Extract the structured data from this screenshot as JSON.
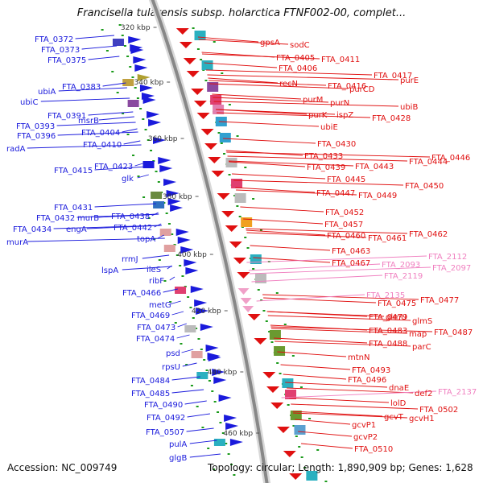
{
  "title": "Francisella tularensis subsp. holarctica FTNF002-00, complet...",
  "footer": {
    "accession": "Accession: NC_009749",
    "summary": "Topology: circular; Length: 1,890,909 bp; Genes: 1,628"
  },
  "colors": {
    "left_labels": "#1a1adc",
    "right_labels": "#e01010",
    "pink_labels": "#f080c0",
    "backbone": "#888888",
    "tick_text": "#333333",
    "dots": "#1a9a1a"
  },
  "ticks": [
    "320 kbp",
    "340 kbp",
    "360 kbp",
    "380 kbp",
    "400 kbp",
    "420 kbp",
    "440 kbp",
    "460 kbp"
  ],
  "left_labels": [
    "FTA_0372",
    "FTA_0373",
    "FTA_0375",
    "ubiA",
    "FTA_0383",
    "ubiC",
    "FTA_0391",
    "msrB",
    "FTA_0393",
    "FTA_0396",
    "radA",
    "FTA_0404",
    "FTA_0410",
    "FTA_0415",
    "FTA_0423",
    "glk",
    "FTA_0431",
    "FTA_0432",
    "murB",
    "FTA_0438",
    "FTA_0434",
    "engA",
    "FTA_0442",
    "murA",
    "topA",
    "rrmJ",
    "lspA",
    "ileS",
    "ribF",
    "FTA_0466",
    "metG",
    "FTA_0469",
    "FTA_0473",
    "FTA_0474",
    "psd",
    "rpsU",
    "FTA_0484",
    "FTA_0485",
    "FTA_0490",
    "FTA_0492",
    "FTA_0507",
    "pulA",
    "glgB"
  ],
  "right_labels": [
    "gpsA",
    "sodC",
    "FTA_0405",
    "FTA_0411",
    "FTA_0406",
    "recN",
    "FTA_0417",
    "purE",
    "FTA_0416",
    "purCD",
    "purM",
    "purN",
    "ubiB",
    "purK",
    "ispZ",
    "FTA_0428",
    "ubiE",
    "FTA_0430",
    "FTA_0433",
    "FTA_0439",
    "FTA_0443",
    "FTA_0444",
    "FTA_0446",
    "FTA_0445",
    "FTA_0450",
    "FTA_0447",
    "FTA_0449",
    "FTA_0452",
    "FTA_0457",
    "FTA_0460",
    "FTA_0461",
    "FTA_0462",
    "FTA_0463",
    "FTA_0467",
    "FTA_0475",
    "FTA_0477",
    "FTA_0479",
    "glmU",
    "glmS",
    "FTA_0483",
    "map",
    "FTA_0487",
    "FTA_0488",
    "parC",
    "mtnN",
    "FTA_0493",
    "FTA_0496",
    "dnaE",
    "def2",
    "FTA_0502",
    "lolD",
    "gcvT",
    "gcvH1",
    "gcvP1",
    "gcvP2",
    "FTA_0510"
  ],
  "pink_labels": [
    "FTA_2112",
    "FTA_2093",
    "FTA_2097",
    "FTA_2119",
    "FTA_2135",
    "FTA_2137"
  ]
}
